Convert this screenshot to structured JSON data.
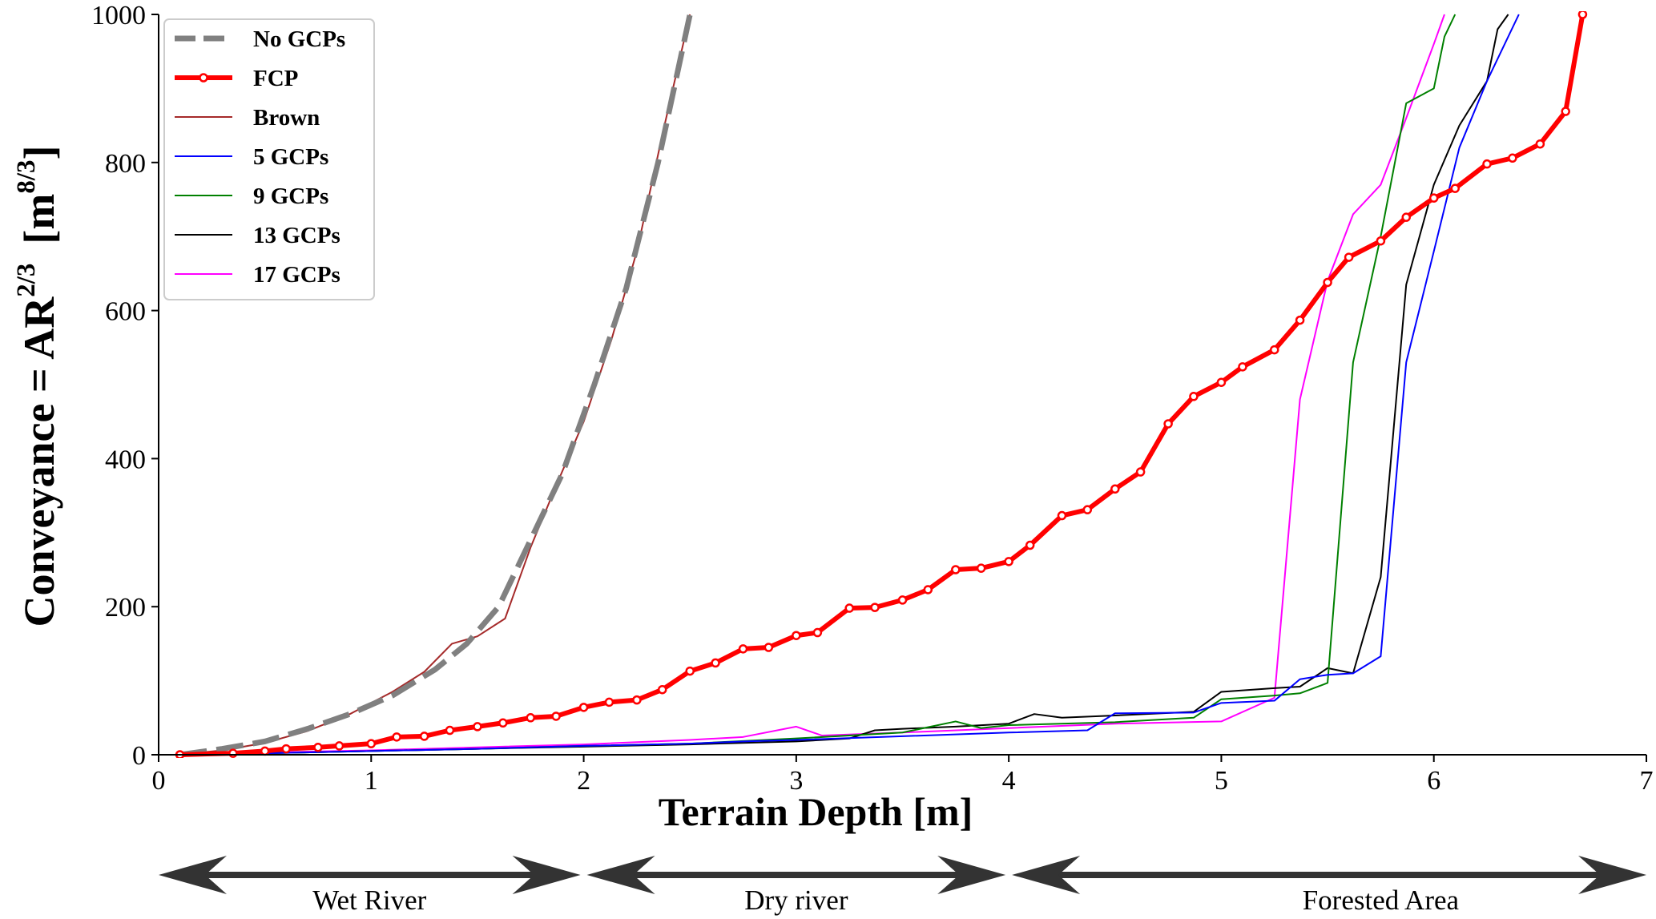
{
  "chart_data": {
    "type": "line",
    "xlabel": "Terrain Depth [m]",
    "ylabel": {
      "main": "Conveyance = AR",
      "exp": "2/3",
      "unit_open": "[m",
      "unit_exp": "8/3",
      "unit_close": "]"
    },
    "xlim": [
      0,
      7
    ],
    "ylim": [
      0,
      1000
    ],
    "xticks": [
      0,
      1,
      2,
      3,
      4,
      5,
      6,
      7
    ],
    "yticks": [
      0,
      200,
      400,
      600,
      800,
      1000
    ],
    "grid": false,
    "legend_position": "top-left",
    "series": [
      {
        "name": "No GCPs",
        "color": "#808080",
        "style": "dashed",
        "x": [
          0.1,
          0.3,
          0.5,
          0.7,
          0.9,
          1.1,
          1.3,
          1.45,
          1.6,
          1.75,
          1.9,
          2.05,
          2.2,
          2.35,
          2.5
        ],
        "y": [
          0,
          8,
          18,
          35,
          55,
          80,
          115,
          150,
          200,
          290,
          380,
          500,
          630,
          800,
          1000
        ]
      },
      {
        "name": "FCP",
        "color": "#ff0000",
        "style": "thick-marker",
        "x": [
          0.1,
          0.35,
          0.5,
          0.6,
          0.75,
          0.85,
          1.0,
          1.12,
          1.25,
          1.37,
          1.5,
          1.62,
          1.75,
          1.87,
          2.0,
          2.12,
          2.25,
          2.37,
          2.5,
          2.62,
          2.75,
          2.87,
          3.0,
          3.1,
          3.25,
          3.37,
          3.5,
          3.62,
          3.75,
          3.87,
          4.0,
          4.1,
          4.25,
          4.37,
          4.5,
          4.62,
          4.75,
          4.87,
          5.0,
          5.1,
          5.25,
          5.37,
          5.5,
          5.6,
          5.75,
          5.87,
          6.0,
          6.1,
          6.25,
          6.37,
          6.5,
          6.62,
          6.7
        ],
        "y": [
          0,
          2,
          5,
          8,
          10,
          12,
          15,
          24,
          25,
          33,
          38,
          43,
          50,
          52,
          64,
          71,
          74,
          88,
          113,
          124,
          143,
          145,
          161,
          165,
          198,
          199,
          209,
          223,
          250,
          252,
          261,
          283,
          323,
          331,
          359,
          382,
          447,
          484,
          503,
          524,
          547,
          587,
          638,
          672,
          694,
          726,
          752,
          765,
          798,
          806,
          825,
          869,
          1000
        ]
      },
      {
        "name": "Brown",
        "color": "#a52a2a",
        "style": "solid",
        "x": [
          0.1,
          0.3,
          0.5,
          0.7,
          0.9,
          1.1,
          1.25,
          1.38,
          1.5,
          1.63,
          1.75,
          1.88,
          2.0,
          2.13,
          2.25,
          2.38,
          2.5
        ],
        "y": [
          0,
          6,
          16,
          32,
          55,
          85,
          112,
          150,
          160,
          184,
          280,
          370,
          450,
          560,
          680,
          850,
          1000
        ]
      },
      {
        "name": "5 GCPs",
        "color": "#0000ff",
        "style": "solid",
        "x": [
          0.1,
          0.5,
          1.0,
          1.5,
          2.0,
          2.5,
          2.75,
          3.0,
          3.5,
          4.0,
          4.37,
          4.5,
          4.87,
          5.0,
          5.25,
          5.37,
          5.5,
          5.62,
          5.75,
          5.87,
          6.0,
          6.12,
          6.25,
          6.4
        ],
        "y": [
          0,
          2,
          5,
          8,
          12,
          15,
          18,
          20,
          25,
          30,
          33,
          56,
          57,
          70,
          73,
          102,
          108,
          110,
          133,
          530,
          680,
          820,
          910,
          1000
        ]
      },
      {
        "name": "9 GCPs",
        "color": "#008000",
        "style": "solid",
        "x": [
          0.1,
          0.5,
          1.0,
          1.5,
          2.0,
          2.5,
          3.0,
          3.5,
          3.75,
          3.87,
          4.0,
          4.5,
          4.87,
          5.0,
          5.25,
          5.37,
          5.5,
          5.62,
          5.75,
          5.87,
          6.0,
          6.05,
          6.1
        ],
        "y": [
          0,
          2,
          5,
          8,
          12,
          15,
          22,
          30,
          45,
          36,
          40,
          44,
          50,
          75,
          80,
          83,
          97,
          530,
          700,
          880,
          900,
          970,
          1000
        ]
      },
      {
        "name": "13 GCPs",
        "color": "#000000",
        "style": "solid",
        "x": [
          0.1,
          0.5,
          1.0,
          1.5,
          2.0,
          2.5,
          3.0,
          3.25,
          3.37,
          3.5,
          3.75,
          4.0,
          4.12,
          4.25,
          4.5,
          4.87,
          5.0,
          5.25,
          5.37,
          5.5,
          5.62,
          5.75,
          5.87,
          6.0,
          6.12,
          6.25,
          6.3,
          6.35
        ],
        "y": [
          0,
          2,
          5,
          8,
          11,
          14,
          18,
          22,
          33,
          35,
          38,
          42,
          55,
          50,
          53,
          58,
          85,
          90,
          92,
          117,
          110,
          240,
          635,
          770,
          850,
          910,
          980,
          1000
        ]
      },
      {
        "name": "17 GCPs",
        "color": "#ff00ff",
        "style": "solid",
        "x": [
          0.1,
          0.5,
          1.0,
          1.5,
          2.0,
          2.5,
          2.75,
          3.0,
          3.12,
          3.5,
          4.0,
          4.5,
          5.0,
          5.25,
          5.37,
          5.5,
          5.62,
          5.75,
          5.87,
          6.0,
          6.05
        ],
        "y": [
          0,
          3,
          6,
          10,
          14,
          20,
          24,
          38,
          26,
          30,
          36,
          42,
          45,
          77,
          480,
          640,
          730,
          770,
          860,
          960,
          1000
        ]
      }
    ]
  },
  "regions": [
    {
      "label": "Wet River",
      "from": 0,
      "to": 2
    },
    {
      "label": "Dry river",
      "from": 2,
      "to": 4
    },
    {
      "label": "Forested Area",
      "from": 4,
      "to": 7
    }
  ]
}
